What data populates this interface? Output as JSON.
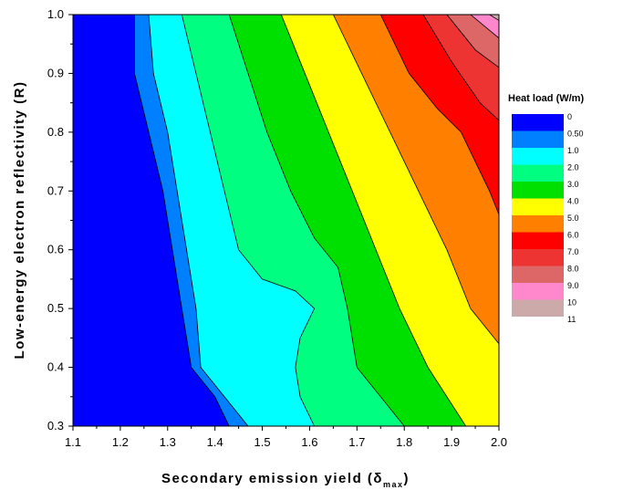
{
  "chart_data": {
    "type": "heatmap",
    "subtype": "filled-contour",
    "xlabel": "Secondary emission yield (δ",
    "xlabel_subscript": "max",
    "xlabel_close": ")",
    "ylabel": "Low-energy electron reflectivity (R)",
    "xlim": [
      1.1,
      2.0
    ],
    "ylim": [
      0.3,
      1.0
    ],
    "x_ticks": [
      "1.1",
      "1.2",
      "1.3",
      "1.4",
      "1.5",
      "1.6",
      "1.7",
      "1.8",
      "1.9",
      "2.0"
    ],
    "y_ticks": [
      "0.3",
      "0.4",
      "0.5",
      "0.6",
      "0.7",
      "0.8",
      "0.9",
      "1.0"
    ],
    "grid": false,
    "legend": {
      "title": "Heat load (W/m)",
      "position": "right",
      "levels": [
        {
          "label": "0",
          "color": "#0000ff"
        },
        {
          "label": "0.50",
          "color": "#0080ff"
        },
        {
          "label": "1.0",
          "color": "#00ffff"
        },
        {
          "label": "2.0",
          "color": "#00ff80"
        },
        {
          "label": "3.0",
          "color": "#00e000"
        },
        {
          "label": "4.0",
          "color": "#ffff00"
        },
        {
          "label": "5.0",
          "color": "#ff8000"
        },
        {
          "label": "6.0",
          "color": "#ff0000"
        },
        {
          "label": "7.0",
          "color": "#ee3333"
        },
        {
          "label": "8.0",
          "color": "#dd6666"
        },
        {
          "label": "9.0",
          "color": "#ff88cc"
        },
        {
          "label": "10",
          "color": "#ccaaaa"
        },
        {
          "label": "11",
          "color": ""
        }
      ]
    },
    "contours": [
      {
        "level": "0.50",
        "points": [
          [
            1.1,
            1.0
          ],
          [
            1.23,
            1.0
          ],
          [
            1.23,
            0.9
          ],
          [
            1.26,
            0.8
          ],
          [
            1.29,
            0.7
          ],
          [
            1.31,
            0.6
          ],
          [
            1.33,
            0.5
          ],
          [
            1.34,
            0.45
          ],
          [
            1.35,
            0.4
          ],
          [
            1.4,
            0.35
          ],
          [
            1.43,
            0.3
          ]
        ]
      },
      {
        "level": "1.0",
        "points": [
          [
            1.26,
            1.0
          ],
          [
            1.27,
            0.9
          ],
          [
            1.3,
            0.8
          ],
          [
            1.32,
            0.7
          ],
          [
            1.34,
            0.6
          ],
          [
            1.36,
            0.5
          ],
          [
            1.37,
            0.4
          ],
          [
            1.42,
            0.35
          ],
          [
            1.47,
            0.3
          ]
        ]
      },
      {
        "level": "2.0",
        "points": [
          [
            1.33,
            1.0
          ],
          [
            1.36,
            0.9
          ],
          [
            1.39,
            0.8
          ],
          [
            1.42,
            0.7
          ],
          [
            1.45,
            0.6
          ],
          [
            1.5,
            0.55
          ],
          [
            1.57,
            0.53
          ],
          [
            1.61,
            0.5
          ],
          [
            1.58,
            0.45
          ],
          [
            1.57,
            0.4
          ],
          [
            1.58,
            0.35
          ],
          [
            1.61,
            0.3
          ]
        ]
      },
      {
        "level": "3.0",
        "points": [
          [
            1.43,
            1.0
          ],
          [
            1.47,
            0.9
          ],
          [
            1.51,
            0.8
          ],
          [
            1.56,
            0.7
          ],
          [
            1.61,
            0.62
          ],
          [
            1.66,
            0.57
          ],
          [
            1.68,
            0.5
          ],
          [
            1.7,
            0.4
          ],
          [
            1.75,
            0.35
          ],
          [
            1.8,
            0.3
          ]
        ]
      },
      {
        "level": "4.0",
        "points": [
          [
            1.54,
            1.0
          ],
          [
            1.59,
            0.9
          ],
          [
            1.64,
            0.8
          ],
          [
            1.69,
            0.7
          ],
          [
            1.74,
            0.6
          ],
          [
            1.79,
            0.5
          ],
          [
            1.85,
            0.4
          ],
          [
            1.93,
            0.3
          ]
        ]
      },
      {
        "level": "5.0",
        "points": [
          [
            1.65,
            1.0
          ],
          [
            1.71,
            0.9
          ],
          [
            1.77,
            0.8
          ],
          [
            1.83,
            0.7
          ],
          [
            1.89,
            0.6
          ],
          [
            1.94,
            0.5
          ],
          [
            2.0,
            0.44
          ]
        ]
      },
      {
        "level": "6.0",
        "points": [
          [
            1.75,
            1.0
          ],
          [
            1.81,
            0.9
          ],
          [
            1.87,
            0.84
          ],
          [
            1.92,
            0.8
          ],
          [
            1.98,
            0.7
          ],
          [
            2.0,
            0.66
          ]
        ]
      },
      {
        "level": "7.0",
        "points": [
          [
            1.84,
            1.0
          ],
          [
            1.9,
            0.92
          ],
          [
            1.96,
            0.85
          ],
          [
            2.0,
            0.82
          ]
        ]
      },
      {
        "level": "8.0",
        "points": [
          [
            1.89,
            1.0
          ],
          [
            1.95,
            0.94
          ],
          [
            2.0,
            0.91
          ]
        ]
      },
      {
        "level": "9.0",
        "points": [
          [
            1.94,
            1.0
          ],
          [
            2.0,
            0.96
          ]
        ]
      },
      {
        "level": "10",
        "points": [
          [
            1.98,
            1.0
          ],
          [
            2.0,
            0.99
          ]
        ]
      }
    ]
  }
}
